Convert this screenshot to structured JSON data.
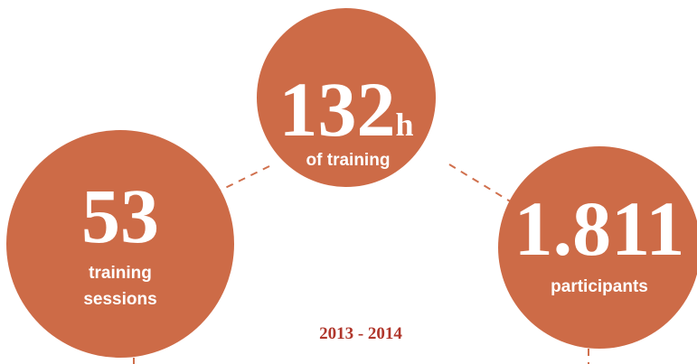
{
  "stats": [
    {
      "value": "53",
      "label": [
        "training",
        "sessions"
      ]
    },
    {
      "value": "132",
      "unit": "h",
      "label": [
        "of training"
      ]
    },
    {
      "value": "1.811",
      "label": [
        "participants"
      ]
    }
  ],
  "period": "2013 - 2014"
}
